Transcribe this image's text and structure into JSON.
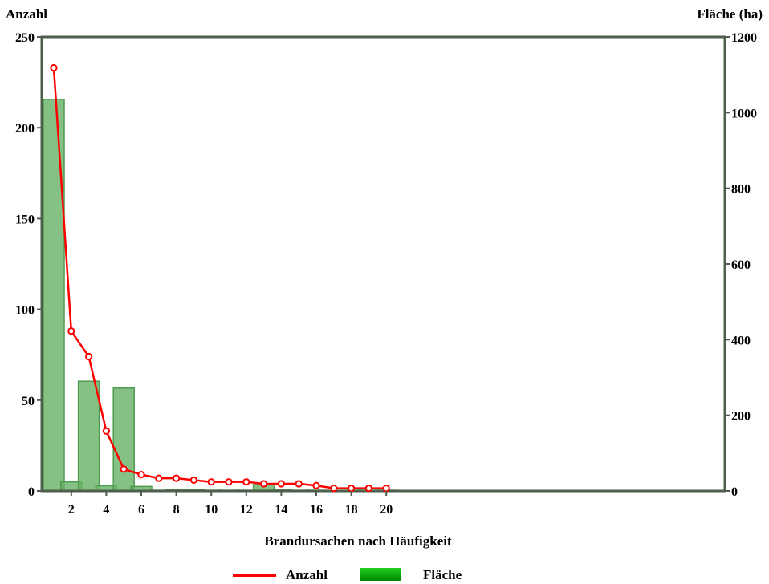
{
  "chart_data": {
    "type": "bar+line",
    "title": "",
    "xlabel": "Brandursachen nach Häufigkeit",
    "ylabel_left": "Anzahl",
    "ylabel_right": "Fläche (ha)",
    "x": [
      1,
      2,
      3,
      4,
      5,
      6,
      7,
      8,
      9,
      10,
      11,
      12,
      13,
      14,
      15,
      16,
      17,
      18,
      19,
      20
    ],
    "x_ticks": [
      2,
      4,
      6,
      8,
      10,
      12,
      14,
      16,
      18,
      20
    ],
    "ylim_left": [
      0,
      250
    ],
    "yticks_left": [
      0,
      50,
      100,
      150,
      200,
      250
    ],
    "ylim_right": [
      0,
      1200
    ],
    "yticks_right": [
      0,
      200,
      400,
      600,
      800,
      1000,
      1200
    ],
    "grid": false,
    "legend_position": "bottom",
    "series": [
      {
        "name": "Anzahl",
        "kind": "line",
        "axis": "left",
        "color": "#ff0000",
        "values": [
          233,
          88,
          74,
          33,
          12,
          9,
          7,
          7,
          6,
          5,
          5,
          5,
          4,
          4,
          4,
          3,
          1.5,
          1.5,
          1.5,
          1.5
        ]
      },
      {
        "name": "Fläche",
        "kind": "bar",
        "axis": "right",
        "color": "#66b266",
        "values": [
          1035,
          24,
          290,
          14,
          272,
          12,
          2,
          3,
          3,
          2,
          2,
          2,
          17,
          3,
          2,
          2,
          1,
          2,
          2,
          2
        ]
      }
    ]
  }
}
